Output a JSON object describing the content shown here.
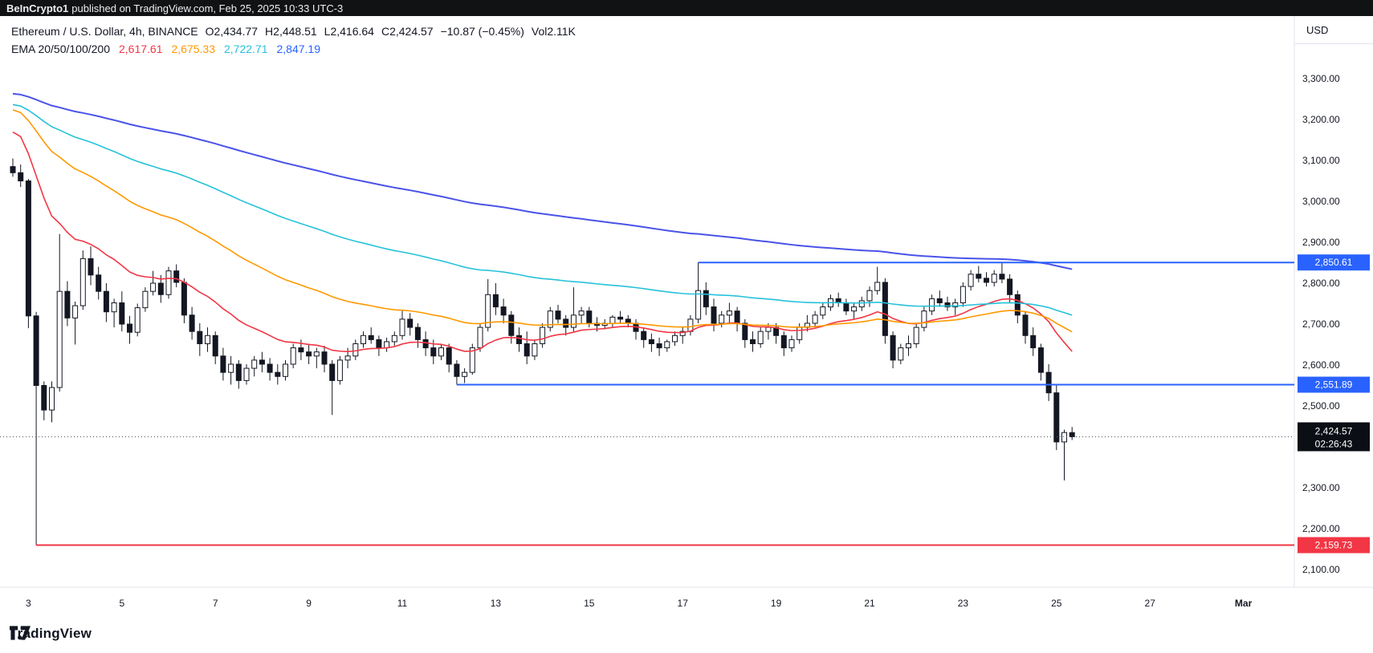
{
  "topbar": {
    "user": "BeInCrypto1",
    "rest": "published on TradingView.com, Feb 25, 2025 10:33 UTC-3"
  },
  "header": {
    "symbol": "Ethereum / U.S. Dollar, 4h, BINANCE",
    "fields": [
      {
        "label": "O",
        "value": "2,434.77"
      },
      {
        "label": "H",
        "value": "2,448.51"
      },
      {
        "label": "L",
        "value": "2,416.64"
      },
      {
        "label": "C",
        "value": "2,424.57"
      }
    ],
    "change": "−10.87 (−0.45%)",
    "volume": {
      "label": "Vol",
      "value": "2.11K"
    },
    "indicator": {
      "label": "EMA 20/50/100/200",
      "values": [
        {
          "text": "2,617.61",
          "color": "#f23645"
        },
        {
          "text": "2,675.33",
          "color": "#ff9800"
        },
        {
          "text": "2,722.71",
          "color": "#26c2da"
        },
        {
          "text": "2,847.19",
          "color": "#2962ff"
        }
      ]
    }
  },
  "axis": {
    "currency": "USD"
  },
  "footer": {
    "brand": "TradingView"
  },
  "chart_data": {
    "type": "candlestick",
    "symbol": "ETHUSD",
    "exchange": "BINANCE",
    "interval": "4h",
    "title": "Ethereum / U.S. Dollar, 4h, BINANCE",
    "ylim": [
      2100,
      3300
    ],
    "grid": false,
    "style": {
      "up_fill": "#ffffff",
      "down_fill": "#131722",
      "border": "#131722",
      "wick": "#131722",
      "last_price_line": "#50535e",
      "axis_text": "#131722",
      "axis_border": "#e0e3eb",
      "last_badge_bg": "#0b0e14"
    },
    "yaxis_ticks": [
      {
        "price": 3300,
        "label": "3,300.00"
      },
      {
        "price": 3200,
        "label": "3,200.00"
      },
      {
        "price": 3100,
        "label": "3,100.00"
      },
      {
        "price": 3000,
        "label": "3,000.00"
      },
      {
        "price": 2900,
        "label": "2,900.00"
      },
      {
        "price": 2800,
        "label": "2,800.00"
      },
      {
        "price": 2700,
        "label": "2,700.00"
      },
      {
        "price": 2600,
        "label": "2,600.00"
      },
      {
        "price": 2500,
        "label": "2,500.00"
      },
      {
        "price": 2400,
        "label": "2,400.00"
      },
      {
        "price": 2300,
        "label": "2,300.00"
      },
      {
        "price": 2200,
        "label": "2,200.00"
      },
      {
        "price": 2100,
        "label": "2,100.00"
      }
    ],
    "xaxis_labels": [
      {
        "text": "3",
        "idx": 2
      },
      {
        "text": "5",
        "idx": 14
      },
      {
        "text": "7",
        "idx": 26
      },
      {
        "text": "9",
        "idx": 38
      },
      {
        "text": "11",
        "idx": 50
      },
      {
        "text": "13",
        "idx": 62
      },
      {
        "text": "15",
        "idx": 74
      },
      {
        "text": "17",
        "idx": 86
      },
      {
        "text": "19",
        "idx": 98
      },
      {
        "text": "21",
        "idx": 110
      },
      {
        "text": "23",
        "idx": 122
      },
      {
        "text": "25",
        "idx": 134
      },
      {
        "text": "27",
        "idx": 146
      },
      {
        "text": "Mar",
        "idx": 158,
        "bold": true
      }
    ],
    "ema": {
      "periods": [
        20,
        50,
        100,
        200
      ],
      "seeds": [
        3180,
        3230,
        3240,
        3265
      ],
      "colors": [
        "#f23645",
        "#ff9800",
        "#26c2da",
        "#4a53e8"
      ],
      "current": [
        2617.61,
        2675.33,
        2722.71,
        2847.19
      ]
    },
    "levels": [
      {
        "price": 2850.61,
        "label": "2,850.61",
        "color": "#2962ff",
        "start_idx": 88
      },
      {
        "price": 2551.89,
        "label": "2,551.89",
        "color": "#2962ff",
        "start_idx": 57
      },
      {
        "price": 2159.73,
        "label": "2,159.73",
        "color": "#f23645",
        "start_idx": 3
      }
    ],
    "last_price": {
      "value": 2424.57,
      "label": "2,424.57",
      "countdown": "02:26:43"
    },
    "candles": [
      [
        3085,
        3105,
        3060,
        3070
      ],
      [
        3070,
        3090,
        3035,
        3050
      ],
      [
        3050,
        3055,
        2690,
        2720
      ],
      [
        2720,
        2730,
        2159.73,
        2550
      ],
      [
        2550,
        2560,
        2465,
        2490
      ],
      [
        2490,
        2560,
        2460,
        2545
      ],
      [
        2545,
        2920,
        2535,
        2780
      ],
      [
        2780,
        2805,
        2695,
        2715
      ],
      [
        2715,
        2755,
        2650,
        2745
      ],
      [
        2745,
        2880,
        2735,
        2860
      ],
      [
        2860,
        2890,
        2795,
        2820
      ],
      [
        2820,
        2840,
        2760,
        2780
      ],
      [
        2780,
        2800,
        2705,
        2730
      ],
      [
        2730,
        2762,
        2692,
        2752
      ],
      [
        2752,
        2780,
        2682,
        2700
      ],
      [
        2700,
        2720,
        2652,
        2680
      ],
      [
        2680,
        2750,
        2670,
        2740
      ],
      [
        2740,
        2790,
        2730,
        2780
      ],
      [
        2780,
        2830,
        2770,
        2800
      ],
      [
        2800,
        2820,
        2752,
        2772
      ],
      [
        2772,
        2840,
        2762,
        2830
      ],
      [
        2830,
        2846,
        2790,
        2802
      ],
      [
        2802,
        2812,
        2702,
        2722
      ],
      [
        2722,
        2742,
        2662,
        2682
      ],
      [
        2682,
        2702,
        2622,
        2652
      ],
      [
        2652,
        2692,
        2632,
        2672
      ],
      [
        2672,
        2682,
        2602,
        2622
      ],
      [
        2622,
        2642,
        2562,
        2582
      ],
      [
        2582,
        2622,
        2552,
        2602
      ],
      [
        2602,
        2612,
        2542,
        2562
      ],
      [
        2562,
        2602,
        2552,
        2592
      ],
      [
        2592,
        2622,
        2572,
        2612
      ],
      [
        2612,
        2632,
        2582,
        2602
      ],
      [
        2602,
        2617,
        2562,
        2582
      ],
      [
        2582,
        2602,
        2552,
        2572
      ],
      [
        2572,
        2612,
        2562,
        2602
      ],
      [
        2602,
        2652,
        2592,
        2642
      ],
      [
        2642,
        2662,
        2612,
        2632
      ],
      [
        2632,
        2652,
        2602,
        2622
      ],
      [
        2622,
        2642,
        2592,
        2632
      ],
      [
        2632,
        2647,
        2582,
        2602
      ],
      [
        2602,
        2612,
        2478,
        2562
      ],
      [
        2562,
        2622,
        2552,
        2612
      ],
      [
        2612,
        2642,
        2592,
        2622
      ],
      [
        2622,
        2662,
        2612,
        2652
      ],
      [
        2652,
        2682,
        2642,
        2672
      ],
      [
        2672,
        2692,
        2652,
        2662
      ],
      [
        2662,
        2672,
        2622,
        2642
      ],
      [
        2642,
        2667,
        2632,
        2657
      ],
      [
        2657,
        2682,
        2647,
        2672
      ],
      [
        2672,
        2732,
        2662,
        2712
      ],
      [
        2712,
        2727,
        2672,
        2692
      ],
      [
        2692,
        2702,
        2642,
        2662
      ],
      [
        2662,
        2682,
        2622,
        2642
      ],
      [
        2642,
        2662,
        2602,
        2622
      ],
      [
        2622,
        2652,
        2612,
        2642
      ],
      [
        2642,
        2652,
        2582,
        2602
      ],
      [
        2602,
        2612,
        2551.89,
        2572
      ],
      [
        2572,
        2592,
        2556,
        2582
      ],
      [
        2582,
        2652,
        2576,
        2642
      ],
      [
        2642,
        2702,
        2632,
        2692
      ],
      [
        2692,
        2810,
        2682,
        2772
      ],
      [
        2772,
        2800,
        2722,
        2742
      ],
      [
        2742,
        2762,
        2702,
        2722
      ],
      [
        2722,
        2732,
        2652,
        2672
      ],
      [
        2672,
        2692,
        2632,
        2652
      ],
      [
        2652,
        2682,
        2602,
        2622
      ],
      [
        2622,
        2662,
        2612,
        2652
      ],
      [
        2652,
        2702,
        2642,
        2692
      ],
      [
        2692,
        2742,
        2682,
        2732
      ],
      [
        2732,
        2747,
        2702,
        2712
      ],
      [
        2712,
        2722,
        2672,
        2692
      ],
      [
        2692,
        2790,
        2682,
        2722
      ],
      [
        2722,
        2742,
        2702,
        2732
      ],
      [
        2732,
        2742,
        2692,
        2702
      ],
      [
        2702,
        2717,
        2682,
        2697
      ],
      [
        2697,
        2712,
        2687,
        2702
      ],
      [
        2702,
        2722,
        2692,
        2717
      ],
      [
        2717,
        2732,
        2702,
        2712
      ],
      [
        2712,
        2722,
        2692,
        2702
      ],
      [
        2702,
        2712,
        2662,
        2682
      ],
      [
        2682,
        2692,
        2642,
        2662
      ],
      [
        2662,
        2677,
        2632,
        2652
      ],
      [
        2652,
        2667,
        2622,
        2642
      ],
      [
        2642,
        2662,
        2632,
        2657
      ],
      [
        2657,
        2682,
        2647,
        2672
      ],
      [
        2672,
        2692,
        2652,
        2682
      ],
      [
        2682,
        2722,
        2672,
        2712
      ],
      [
        2712,
        2850.61,
        2702,
        2782
      ],
      [
        2782,
        2802,
        2722,
        2742
      ],
      [
        2742,
        2762,
        2682,
        2702
      ],
      [
        2702,
        2732,
        2692,
        2722
      ],
      [
        2722,
        2752,
        2702,
        2732
      ],
      [
        2732,
        2742,
        2682,
        2702
      ],
      [
        2702,
        2712,
        2642,
        2662
      ],
      [
        2662,
        2682,
        2632,
        2652
      ],
      [
        2652,
        2692,
        2642,
        2682
      ],
      [
        2682,
        2702,
        2662,
        2692
      ],
      [
        2692,
        2702,
        2652,
        2672
      ],
      [
        2672,
        2682,
        2622,
        2642
      ],
      [
        2642,
        2672,
        2632,
        2662
      ],
      [
        2662,
        2702,
        2652,
        2692
      ],
      [
        2692,
        2722,
        2682,
        2702
      ],
      [
        2702,
        2732,
        2692,
        2722
      ],
      [
        2722,
        2752,
        2712,
        2742
      ],
      [
        2742,
        2772,
        2732,
        2762
      ],
      [
        2762,
        2777,
        2742,
        2752
      ],
      [
        2752,
        2762,
        2722,
        2732
      ],
      [
        2732,
        2752,
        2712,
        2742
      ],
      [
        2742,
        2767,
        2732,
        2757
      ],
      [
        2757,
        2792,
        2742,
        2782
      ],
      [
        2782,
        2840,
        2772,
        2802
      ],
      [
        2802,
        2812,
        2652,
        2672
      ],
      [
        2672,
        2682,
        2592,
        2612
      ],
      [
        2612,
        2652,
        2602,
        2642
      ],
      [
        2642,
        2672,
        2622,
        2652
      ],
      [
        2652,
        2702,
        2642,
        2692
      ],
      [
        2692,
        2742,
        2682,
        2732
      ],
      [
        2732,
        2772,
        2722,
        2762
      ],
      [
        2762,
        2782,
        2742,
        2752
      ],
      [
        2752,
        2767,
        2732,
        2742
      ],
      [
        2742,
        2762,
        2722,
        2752
      ],
      [
        2752,
        2802,
        2742,
        2792
      ],
      [
        2792,
        2832,
        2782,
        2822
      ],
      [
        2822,
        2842,
        2802,
        2812
      ],
      [
        2812,
        2827,
        2792,
        2802
      ],
      [
        2802,
        2832,
        2792,
        2822
      ],
      [
        2822,
        2852,
        2800,
        2810
      ],
      [
        2810,
        2822,
        2752,
        2772
      ],
      [
        2772,
        2782,
        2702,
        2722
      ],
      [
        2722,
        2732,
        2652,
        2672
      ],
      [
        2672,
        2692,
        2622,
        2642
      ],
      [
        2642,
        2652,
        2562,
        2582
      ],
      [
        2582,
        2602,
        2512,
        2532
      ],
      [
        2532,
        2552,
        2392,
        2412
      ],
      [
        2412,
        2442,
        2318,
        2435
      ],
      [
        2434.77,
        2448.51,
        2416.64,
        2424.57
      ]
    ]
  }
}
